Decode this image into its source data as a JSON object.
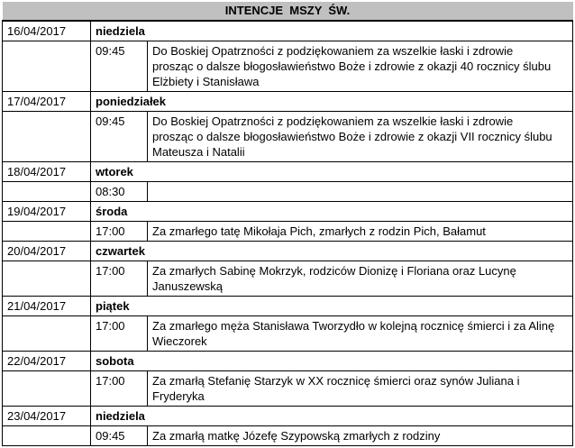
{
  "header": {
    "title": "INTENCJE  MSZY  ŚW."
  },
  "days": [
    {
      "date": "16/04/2017",
      "day": "niedziela",
      "time": "09:45",
      "intention": "Do Boskiej Opatrzności z podziękowaniem za wszelkie łaski i zdrowie\nprosząc o dalsze błogosławieństwo Boże i zdrowie z okazji 40 rocznicy ślubu\nElżbiety i Stanisława"
    },
    {
      "date": "17/04/2017",
      "day": "poniedziałek",
      "time": "09:45",
      "intention": "Do Boskiej Opatrzności z podziękowaniem za wszelkie łaski i zdrowie\nprosząc o dalsze błogosławieństwo Boże i zdrowie z okazji VII rocznicy ślubu\nMateusza i Natalii"
    },
    {
      "date": "18/04/2017",
      "day": "wtorek",
      "time": "08:30",
      "intention": ""
    },
    {
      "date": "19/04/2017",
      "day": "środa",
      "time": "17:00",
      "intention": "Za zmarłego tatę Mikołaja Pich, zmarłych z rodzin Pich, Bałamut"
    },
    {
      "date": "20/04/2017",
      "day": "czwartek",
      "time": "17:00",
      "intention": "Za zmarłych Sabinę Mokrzyk, rodziców Dionizę i Floriana oraz Lucynę\nJanuszewską"
    },
    {
      "date": "21/04/2017",
      "day": "piątek",
      "time": "17:00",
      "intention": "Za zmarłego męża Stanisława Tworzydło w kolejną rocznicę śmierci i za Alinę\nWieczorek"
    },
    {
      "date": "22/04/2017",
      "day": "sobota",
      "time": "17:00",
      "intention": "Za zmarłą Stefanię Starzyk w XX rocznicę śmierci oraz synów Juliana i\nFryderyka"
    },
    {
      "date": "23/04/2017",
      "day": "niedziela",
      "time": "09:45",
      "intention": "Za zmarłą matkę Józefę Szypowską zmarłych z rodziny"
    }
  ],
  "colors": {
    "header_bg": "#c0c0c0",
    "border": "#000000",
    "text": "#000000"
  }
}
